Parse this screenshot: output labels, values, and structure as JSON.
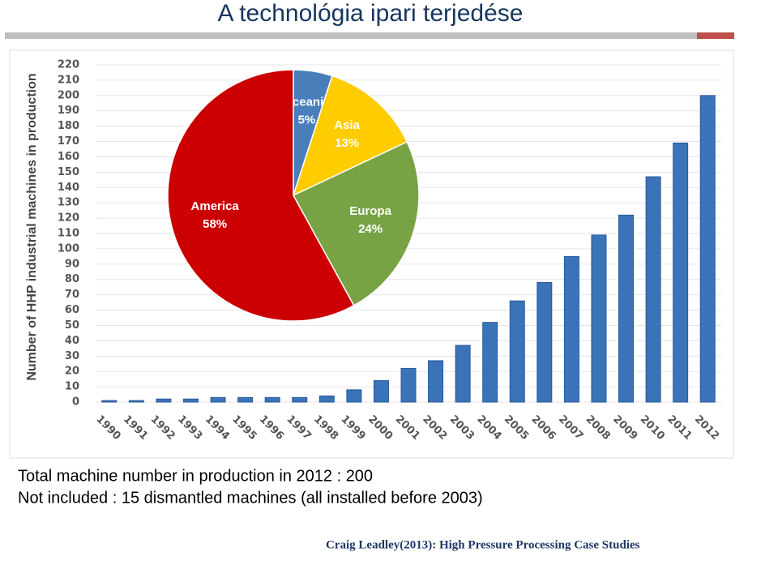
{
  "title": "A technológia ipari terjedése",
  "notes": [
    "Total machine number in production in 2012 : 200",
    "Not included : 15 dismantled machines (all installed before 2003)"
  ],
  "citation": "Craig Leadley(2013): High Pressure Processing Case Studies",
  "chart_data": [
    {
      "type": "bar",
      "y_label": "Number of HHP industrial machines in production",
      "categories": [
        "1990",
        "1991",
        "1992",
        "1993",
        "1994",
        "1995",
        "1996",
        "1997",
        "1998",
        "1999",
        "2000",
        "2001",
        "2002",
        "2003",
        "2004",
        "2005",
        "2006",
        "2007",
        "2008",
        "2009",
        "2010",
        "2011",
        "2012"
      ],
      "values": [
        1,
        1,
        2,
        2,
        3,
        3,
        3,
        3,
        4,
        8,
        14,
        22,
        27,
        37,
        52,
        66,
        78,
        95,
        109,
        122,
        147,
        169,
        200
      ],
      "color": "#3b73b9",
      "ylim": [
        0,
        220
      ],
      "yticks": [
        0,
        10,
        20,
        30,
        40,
        50,
        60,
        70,
        80,
        90,
        100,
        110,
        120,
        130,
        140,
        150,
        160,
        170,
        180,
        190,
        200,
        210,
        220
      ],
      "grid": true
    },
    {
      "type": "pie",
      "categories": [
        "Oceania",
        "Asia",
        "Europa",
        "America"
      ],
      "values": [
        5,
        13,
        24,
        58
      ],
      "value_labels": [
        "5%",
        "13%",
        "24%",
        "58%"
      ],
      "colors": [
        "#4a7ebb",
        "#ffcc00",
        "#77a345",
        "#cc0000"
      ]
    }
  ]
}
